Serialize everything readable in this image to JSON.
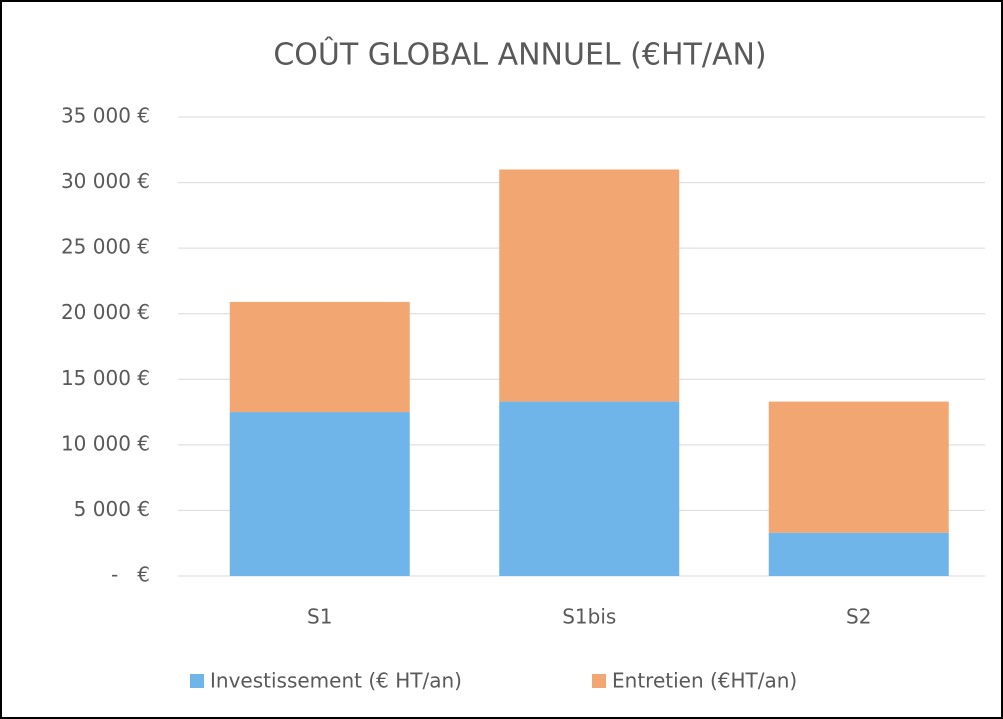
{
  "chart_data": {
    "type": "stacked_bar",
    "title": "COÛT GLOBAL ANNUEL (€HT/AN)",
    "categories": [
      "S1",
      "S1bis",
      "S2"
    ],
    "series": [
      {
        "name": "Investissement (€ HT/an)",
        "color": "#6fb5ea",
        "values": [
          12500,
          13300,
          3300
        ]
      },
      {
        "name": "Entretien (€HT/an)",
        "color": "#f2a772",
        "values": [
          8400,
          17700,
          10000
        ]
      }
    ],
    "ylim": [
      0,
      35000
    ],
    "yticks": [
      {
        "value": 0,
        "label": "-   €"
      },
      {
        "value": 5000,
        "label": "5 000 €"
      },
      {
        "value": 10000,
        "label": "10 000 €"
      },
      {
        "value": 15000,
        "label": "15 000 €"
      },
      {
        "value": 20000,
        "label": "20 000 €"
      },
      {
        "value": 25000,
        "label": "25 000 €"
      },
      {
        "value": 30000,
        "label": "30 000 €"
      },
      {
        "value": 35000,
        "label": "35 000 €"
      }
    ],
    "grid": true,
    "legend": "bottom"
  }
}
